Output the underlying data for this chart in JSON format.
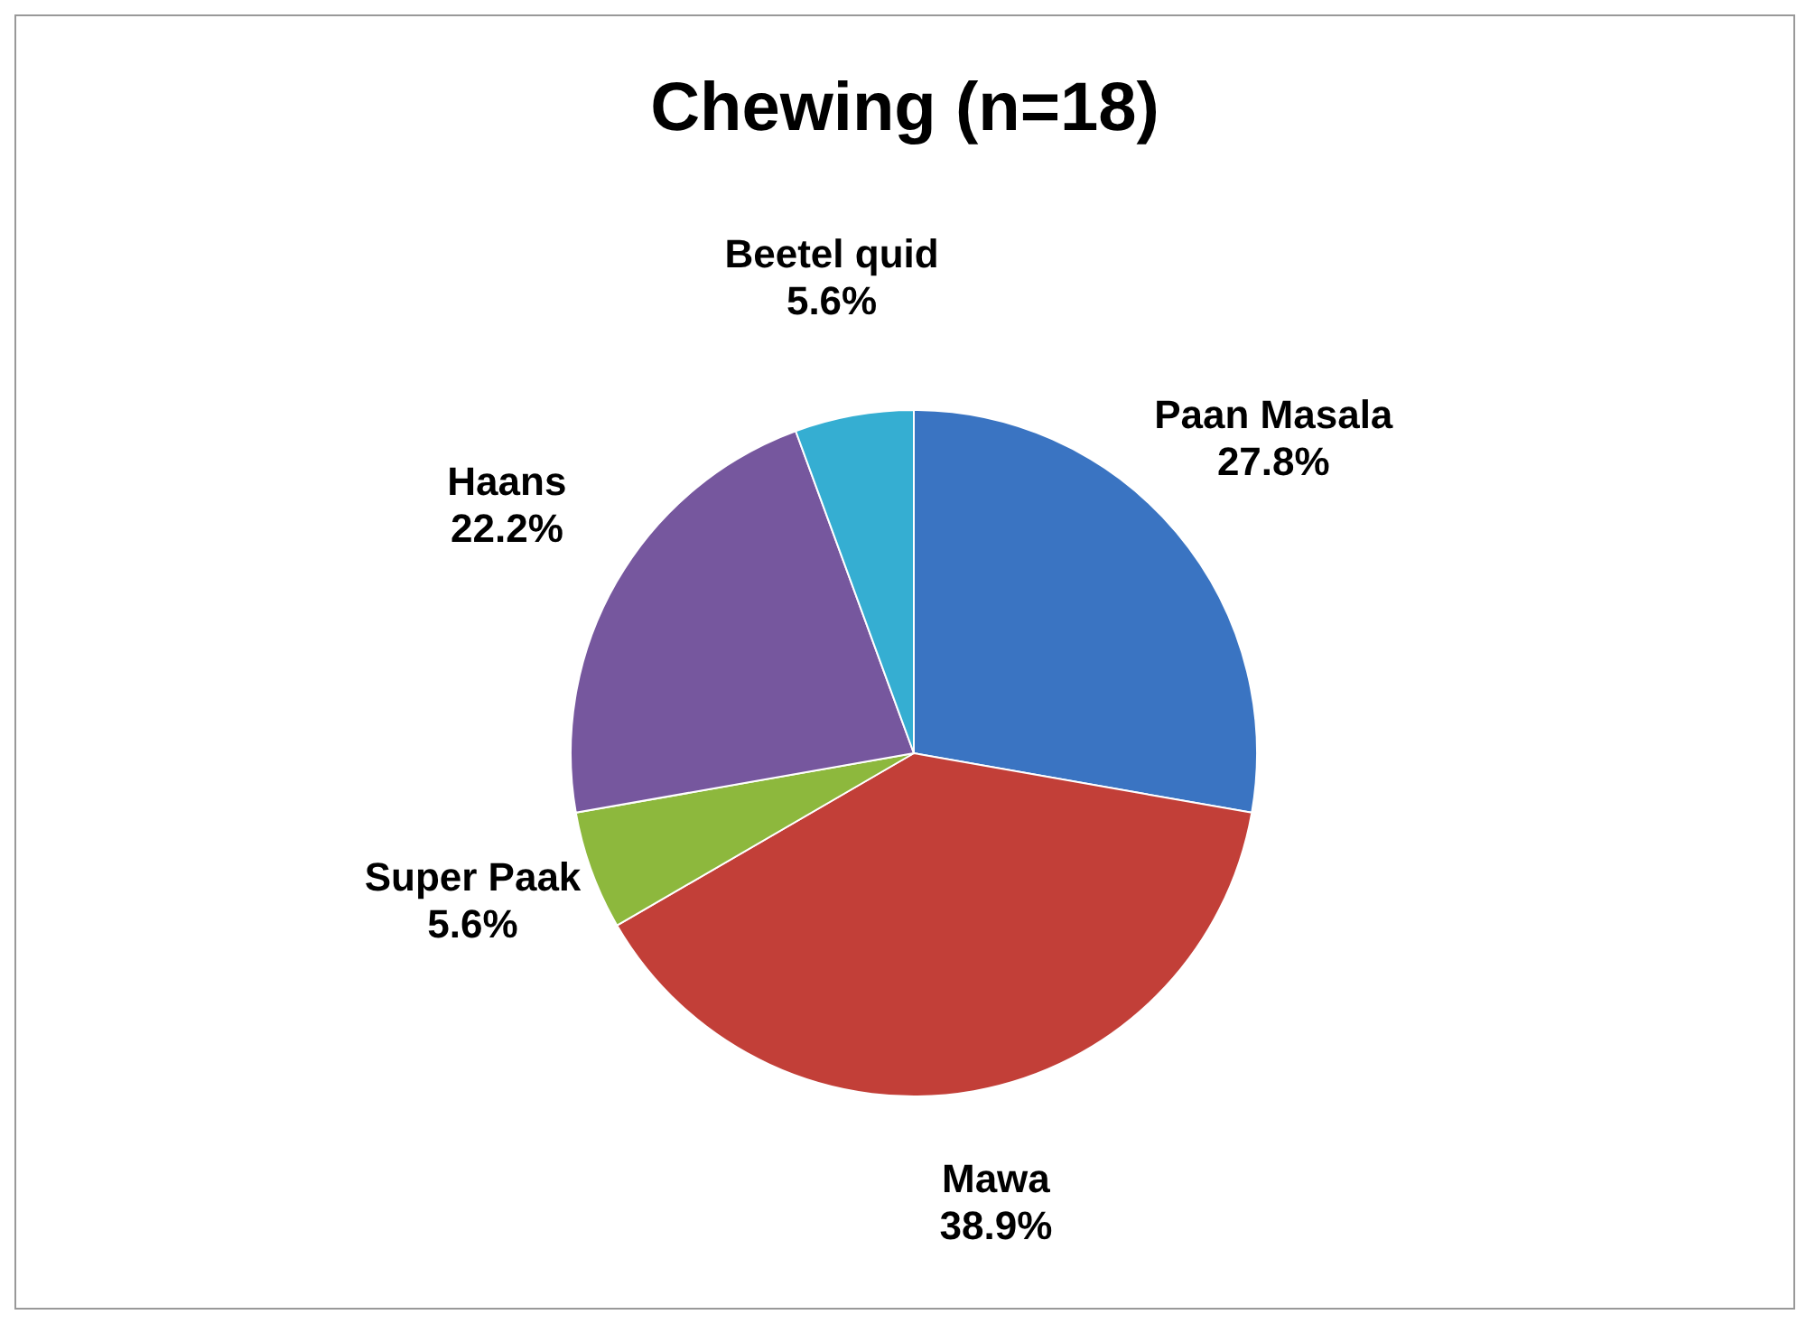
{
  "chart_data": {
    "type": "pie",
    "title": "Chewing (n=18)",
    "categories": [
      "Paan Masala",
      "Mawa",
      "Super Paak",
      "Haans",
      "Beetel quid"
    ],
    "values": [
      27.8,
      38.9,
      5.6,
      22.2,
      5.6
    ],
    "value_labels": [
      "27.8%",
      "38.9%",
      "5.6%",
      "22.2%",
      "5.6%"
    ],
    "colors": [
      "#3a74c2",
      "#c23f38",
      "#8db83d",
      "#76579e",
      "#35aed2"
    ]
  }
}
